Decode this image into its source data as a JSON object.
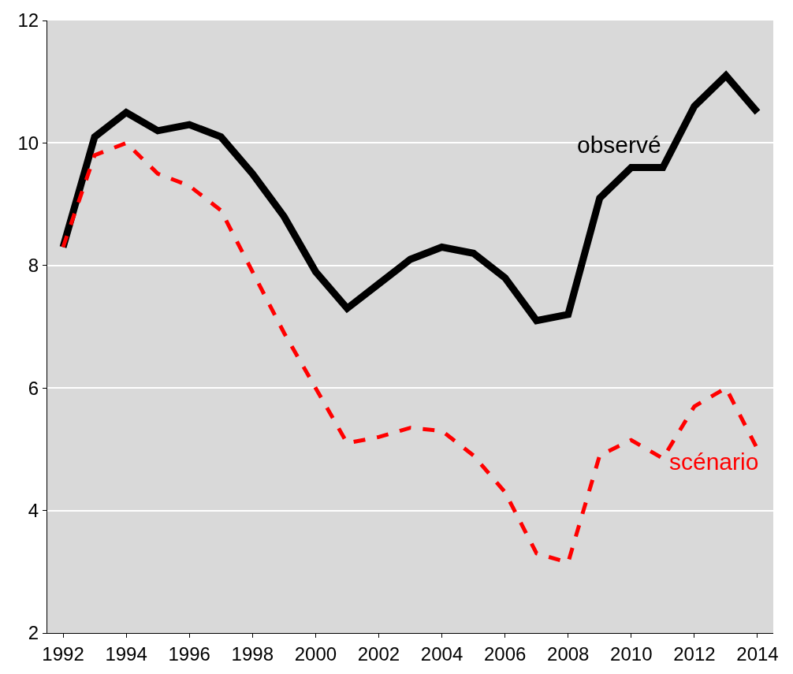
{
  "chart_data": {
    "type": "line",
    "x": [
      1992,
      1993,
      1994,
      1995,
      1996,
      1997,
      1998,
      1999,
      2000,
      2001,
      2002,
      2003,
      2004,
      2005,
      2006,
      2007,
      2008,
      2009,
      2010,
      2011,
      2012,
      2013,
      2014
    ],
    "series": [
      {
        "name": "observé",
        "color": "#000000",
        "line_style": "solid",
        "values": [
          8.3,
          10.1,
          10.5,
          10.2,
          10.3,
          10.1,
          9.5,
          8.8,
          7.9,
          7.3,
          7.7,
          8.1,
          8.3,
          8.2,
          7.8,
          7.1,
          7.2,
          9.1,
          9.6,
          9.6,
          10.6,
          11.1,
          10.5
        ]
      },
      {
        "name": "scénario",
        "color": "#ff0000",
        "line_style": "dashed",
        "values": [
          8.3,
          9.8,
          10.0,
          9.5,
          9.3,
          8.9,
          7.9,
          6.9,
          6.0,
          5.1,
          5.2,
          5.35,
          5.3,
          4.9,
          4.3,
          3.3,
          3.15,
          4.9,
          5.15,
          4.85,
          5.7,
          6.0,
          5.0
        ]
      }
    ],
    "xlim": [
      1991.5,
      2014.5
    ],
    "xticks": [
      1992,
      1994,
      1996,
      1998,
      2000,
      2002,
      2004,
      2006,
      2008,
      2010,
      2012,
      2014
    ],
    "ylim": [
      2,
      12
    ],
    "yticks": [
      2,
      4,
      6,
      8,
      10,
      12
    ],
    "grid": "y",
    "legend": false,
    "marker": "none"
  }
}
